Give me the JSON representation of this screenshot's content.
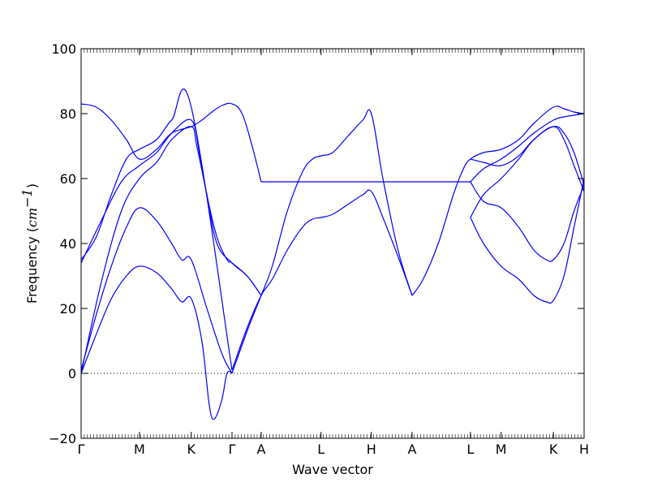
{
  "chart_data": {
    "type": "line",
    "xlabel": "Wave vector",
    "ylabel": {
      "prefix": "Frequency (",
      "var": "cm",
      "sup": "−1",
      "suffix": ")"
    },
    "ylim": [
      -20,
      100
    ],
    "xlim": [
      0,
      1
    ],
    "y_ticks": [
      -20,
      0,
      20,
      40,
      60,
      80,
      100
    ],
    "y_tick_labels": [
      "−20",
      "0",
      "20",
      "40",
      "60",
      "80",
      "100"
    ],
    "x_ticks": [
      {
        "label": "Γ",
        "x": 0.0
      },
      {
        "label": "M",
        "x": 0.116
      },
      {
        "label": "K",
        "x": 0.219
      },
      {
        "label": "Γ",
        "x": 0.3
      },
      {
        "label": "A",
        "x": 0.358
      },
      {
        "label": "L",
        "x": 0.477
      },
      {
        "label": "H",
        "x": 0.577
      },
      {
        "label": "A",
        "x": 0.658
      },
      {
        "label": "L",
        "x": 0.774
      },
      {
        "label": "M",
        "x": 0.835
      },
      {
        "label": "K",
        "x": 0.939
      },
      {
        "label": "H",
        "x": 1.0
      }
    ],
    "zero_line": {
      "y": 0,
      "style": "dotted"
    },
    "line_color": "#0000ff",
    "series": [
      {
        "x": [
          0,
          0.03,
          0.06,
          0.09,
          0.116,
          0.15,
          0.18,
          0.2,
          0.219,
          0.24,
          0.255,
          0.265,
          0.28,
          0.29,
          0.3
        ],
        "y": [
          0,
          12,
          23,
          30,
          33,
          31,
          26,
          22,
          23,
          10,
          -10,
          -14,
          -8,
          0,
          0
        ]
      },
      {
        "x": [
          0,
          0.03,
          0.06,
          0.09,
          0.116,
          0.15,
          0.18,
          0.2,
          0.219,
          0.25,
          0.28,
          0.3
        ],
        "y": [
          1,
          18,
          33,
          45,
          51,
          47,
          40,
          35,
          35,
          20,
          6,
          0
        ]
      },
      {
        "x": [
          0,
          0.04,
          0.08,
          0.116,
          0.15,
          0.18,
          0.219,
          0.23,
          0.25,
          0.27,
          0.3,
          0.33,
          0.358
        ],
        "y": [
          0,
          28,
          50,
          60,
          65,
          72,
          76,
          70,
          55,
          40,
          34,
          30,
          24
        ]
      },
      {
        "x": [
          0,
          0.04,
          0.08,
          0.116,
          0.15,
          0.18,
          0.219,
          0.235,
          0.25,
          0.27,
          0.29,
          0.3,
          0.33,
          0.358
        ],
        "y": [
          34,
          47,
          59,
          64,
          68,
          74,
          78,
          68,
          55,
          42,
          35,
          34,
          30,
          24
        ]
      },
      {
        "x": [
          0,
          0.03,
          0.06,
          0.09,
          0.116,
          0.15,
          0.18,
          0.219,
          0.3
        ],
        "y": [
          35,
          42,
          55,
          66,
          69,
          72,
          78,
          82,
          1
        ]
      },
      {
        "x": [
          0,
          0.03,
          0.06,
          0.09,
          0.116,
          0.15,
          0.18,
          0.219,
          0.24,
          0.26,
          0.28,
          0.3,
          0.32,
          0.34,
          0.358
        ],
        "y": [
          83,
          82,
          78,
          72,
          66,
          69,
          74,
          76,
          78,
          80.5,
          82.5,
          83,
          80,
          70,
          59
        ]
      },
      {
        "x": [
          0.3,
          0.33,
          0.358,
          0.38,
          0.41,
          0.44,
          0.46,
          0.477,
          0.5,
          0.53,
          0.56,
          0.577,
          0.6,
          0.63,
          0.658
        ],
        "y": [
          0,
          13,
          24,
          33,
          50,
          62,
          66,
          67,
          68,
          73,
          78,
          80,
          60,
          38,
          24
        ]
      },
      {
        "x": [
          0.3,
          0.33,
          0.358,
          0.38,
          0.41,
          0.44,
          0.46,
          0.477,
          0.5,
          0.53,
          0.56,
          0.577,
          0.6,
          0.63,
          0.658
        ],
        "y": [
          1,
          14,
          24,
          29,
          38,
          45,
          47.5,
          48,
          49,
          52,
          55,
          56,
          48,
          36,
          24
        ]
      },
      {
        "x": [
          0.358,
          0.477,
          0.577,
          0.658,
          0.774
        ],
        "y": [
          59,
          59,
          59,
          59,
          59
        ]
      },
      {
        "x": [
          0.658,
          0.68,
          0.71,
          0.74,
          0.76,
          0.774,
          0.8,
          0.835,
          0.87,
          0.9,
          0.939,
          0.96,
          0.98,
          1.0
        ],
        "y": [
          24,
          29,
          40,
          55,
          63,
          66,
          68,
          69,
          72,
          77,
          82,
          81.5,
          80.5,
          80
        ]
      },
      {
        "x": [
          0.774,
          0.8,
          0.835,
          0.87,
          0.9,
          0.939,
          0.96,
          0.98,
          1.0
        ],
        "y": [
          66,
          65,
          64,
          67,
          72,
          76,
          72,
          64,
          56
        ]
      },
      {
        "x": [
          0.774,
          0.8,
          0.835,
          0.87,
          0.9,
          0.939,
          0.96,
          0.98,
          1.0
        ],
        "y": [
          59,
          63,
          66,
          70,
          74,
          78,
          79,
          79.5,
          80
        ]
      },
      {
        "x": [
          0.774,
          0.8,
          0.835,
          0.87,
          0.9,
          0.939,
          0.96,
          0.98,
          1.0
        ],
        "y": [
          48,
          55,
          60,
          66,
          72,
          76,
          74,
          68,
          58
        ]
      },
      {
        "x": [
          0.774,
          0.8,
          0.835,
          0.87,
          0.9,
          0.925,
          0.939,
          0.96,
          0.98,
          1.0
        ],
        "y": [
          59,
          53,
          51,
          45,
          38,
          35,
          35,
          40,
          50,
          58
        ]
      },
      {
        "x": [
          0.774,
          0.8,
          0.835,
          0.87,
          0.9,
          0.925,
          0.939,
          0.96,
          0.98,
          1.0
        ],
        "y": [
          48,
          40,
          33,
          29,
          24,
          22,
          22.5,
          30,
          45,
          60
        ]
      }
    ]
  }
}
